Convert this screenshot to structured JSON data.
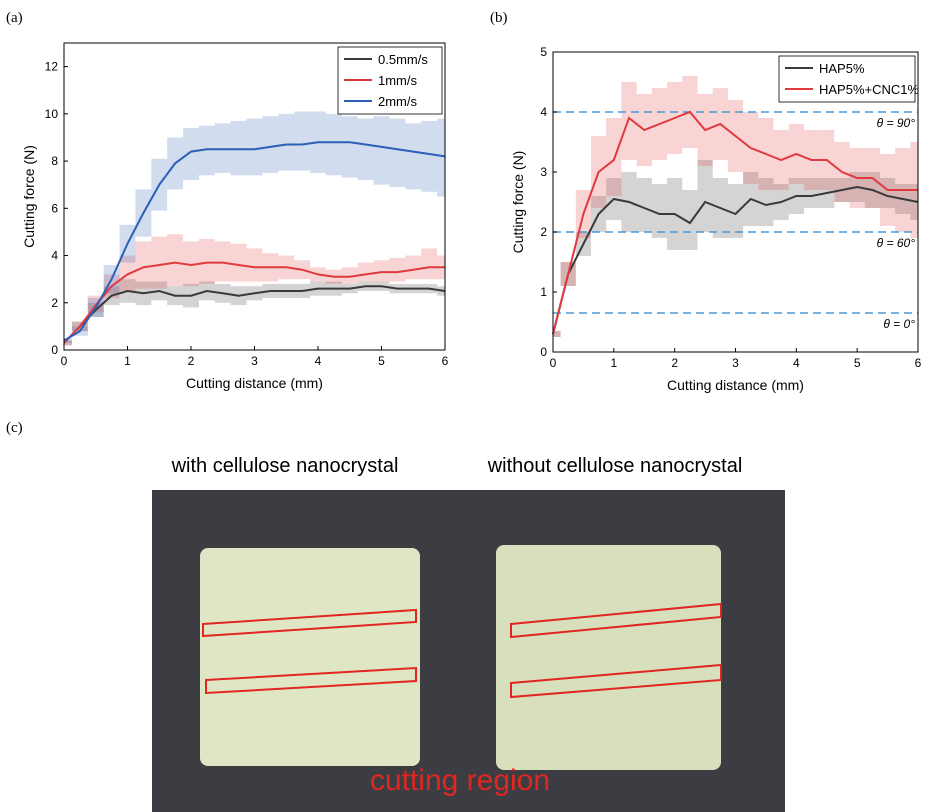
{
  "chart_data": [
    {
      "type": "line",
      "panel_label": "(a)",
      "xlabel": "Cutting distance (mm)",
      "ylabel": "Cutting force (N)",
      "xlim": [
        0,
        6
      ],
      "ylim": [
        0,
        13
      ],
      "xticks": [
        0,
        1,
        2,
        3,
        4,
        5,
        6
      ],
      "yticks": [
        0,
        2,
        4,
        6,
        8,
        10,
        12
      ],
      "legend": "upper right",
      "x": [
        0,
        0.25,
        0.5,
        0.75,
        1,
        1.25,
        1.5,
        1.75,
        2,
        2.25,
        2.5,
        2.75,
        3,
        3.25,
        3.5,
        3.75,
        4,
        4.25,
        4.5,
        4.75,
        5,
        5.25,
        5.5,
        5.75,
        6
      ],
      "series": [
        {
          "name": "0.5mm/s",
          "color": "#3a3a3a",
          "values": [
            0.3,
            1.0,
            1.7,
            2.3,
            2.5,
            2.4,
            2.5,
            2.3,
            2.3,
            2.5,
            2.4,
            2.3,
            2.4,
            2.5,
            2.5,
            2.5,
            2.6,
            2.6,
            2.6,
            2.7,
            2.7,
            2.6,
            2.6,
            2.6,
            2.5
          ],
          "lower": [
            0.2,
            0.8,
            1.4,
            1.9,
            2.0,
            1.9,
            2.1,
            1.9,
            1.8,
            2.1,
            2.0,
            1.9,
            2.1,
            2.2,
            2.2,
            2.2,
            2.3,
            2.3,
            2.4,
            2.5,
            2.5,
            2.4,
            2.4,
            2.4,
            2.3
          ],
          "upper": [
            0.4,
            1.2,
            2.0,
            2.7,
            3.0,
            2.9,
            2.9,
            2.7,
            2.8,
            2.9,
            2.8,
            2.7,
            2.7,
            2.8,
            2.8,
            2.8,
            2.9,
            2.9,
            2.8,
            2.9,
            2.9,
            2.8,
            2.8,
            2.8,
            2.7
          ]
        },
        {
          "name": "1mm/s",
          "color": "#e0393e",
          "values": [
            0.3,
            1.0,
            1.9,
            2.7,
            3.2,
            3.5,
            3.6,
            3.7,
            3.6,
            3.7,
            3.7,
            3.6,
            3.5,
            3.5,
            3.5,
            3.4,
            3.2,
            3.1,
            3.1,
            3.2,
            3.3,
            3.3,
            3.4,
            3.5,
            3.5
          ],
          "lower": [
            0.2,
            0.8,
            1.6,
            2.2,
            2.5,
            2.6,
            2.6,
            2.7,
            2.7,
            2.8,
            2.9,
            2.9,
            2.9,
            2.9,
            3.0,
            3.0,
            2.9,
            2.8,
            2.8,
            2.9,
            2.9,
            2.9,
            3.0,
            3.0,
            3.0
          ],
          "upper": [
            0.4,
            1.2,
            2.3,
            3.2,
            4.0,
            4.6,
            4.8,
            4.9,
            4.6,
            4.7,
            4.6,
            4.5,
            4.3,
            4.1,
            4.0,
            3.8,
            3.5,
            3.4,
            3.5,
            3.7,
            3.8,
            3.9,
            4.0,
            4.3,
            4.0
          ]
        },
        {
          "name": "2mm/s",
          "color": "#2c5fb5",
          "values": [
            0.4,
            0.8,
            1.8,
            3.0,
            4.5,
            5.8,
            7.0,
            7.9,
            8.4,
            8.5,
            8.5,
            8.5,
            8.5,
            8.6,
            8.7,
            8.7,
            8.8,
            8.8,
            8.8,
            8.7,
            8.6,
            8.5,
            8.4,
            8.3,
            8.2
          ],
          "lower": [
            0.3,
            0.6,
            1.4,
            2.4,
            3.7,
            4.8,
            5.9,
            6.8,
            7.2,
            7.4,
            7.5,
            7.4,
            7.4,
            7.5,
            7.6,
            7.6,
            7.5,
            7.4,
            7.3,
            7.2,
            7.0,
            6.9,
            6.8,
            6.7,
            6.5
          ],
          "upper": [
            0.5,
            1.0,
            2.2,
            3.6,
            5.3,
            6.8,
            8.1,
            9.0,
            9.4,
            9.5,
            9.6,
            9.7,
            9.8,
            9.9,
            10.0,
            10.1,
            10.1,
            10.0,
            9.9,
            9.8,
            9.9,
            9.8,
            9.6,
            9.7,
            9.8
          ]
        }
      ]
    },
    {
      "type": "line",
      "panel_label": "(b)",
      "xlabel": "Cutting distance (mm)",
      "ylabel": "Cutting force (N)",
      "xlim": [
        0,
        6
      ],
      "ylim": [
        0,
        5
      ],
      "xticks": [
        0,
        1,
        2,
        3,
        4,
        5,
        6
      ],
      "yticks": [
        0,
        1,
        2,
        3,
        4,
        5
      ],
      "legend": "upper right",
      "reference_lines": [
        {
          "value": 4,
          "label": "θ = 90°"
        },
        {
          "value": 2,
          "label": "θ = 60°"
        },
        {
          "value": 0.65,
          "label": "θ = 0°"
        }
      ],
      "x": [
        0,
        0.25,
        0.5,
        0.75,
        1,
        1.25,
        1.5,
        1.75,
        2,
        2.25,
        2.5,
        2.75,
        3,
        3.25,
        3.5,
        3.75,
        4,
        4.25,
        4.5,
        4.75,
        5,
        5.25,
        5.5,
        5.75,
        6
      ],
      "series": [
        {
          "name": "HAP5%",
          "color": "#3a3a3a",
          "values": [
            0.3,
            1.3,
            1.8,
            2.3,
            2.55,
            2.5,
            2.4,
            2.3,
            2.3,
            2.15,
            2.5,
            2.4,
            2.3,
            2.55,
            2.45,
            2.5,
            2.6,
            2.6,
            2.65,
            2.7,
            2.75,
            2.7,
            2.6,
            2.55,
            2.5
          ],
          "lower": [
            0.25,
            1.1,
            1.6,
            2.0,
            2.2,
            2.0,
            2.0,
            1.9,
            1.7,
            1.7,
            2.0,
            1.9,
            1.9,
            2.1,
            2.1,
            2.2,
            2.3,
            2.4,
            2.4,
            2.5,
            2.5,
            2.4,
            2.4,
            2.3,
            2.2
          ],
          "upper": [
            0.35,
            1.5,
            2.0,
            2.6,
            2.9,
            3.0,
            2.9,
            2.8,
            2.9,
            2.7,
            3.2,
            2.9,
            2.8,
            3.0,
            2.9,
            2.8,
            2.9,
            2.9,
            2.9,
            2.9,
            3.0,
            3.0,
            2.9,
            2.8,
            2.8
          ]
        },
        {
          "name": "HAP5%+CNC1%",
          "color": "#e0393e",
          "values": [
            0.3,
            1.3,
            2.3,
            3.0,
            3.2,
            3.9,
            3.7,
            3.8,
            3.9,
            4.0,
            3.7,
            3.8,
            3.6,
            3.4,
            3.3,
            3.2,
            3.3,
            3.2,
            3.2,
            3.0,
            2.9,
            2.9,
            2.7,
            2.7,
            2.7
          ],
          "lower": [
            0.25,
            1.1,
            1.9,
            2.4,
            2.6,
            3.2,
            3.1,
            3.2,
            3.3,
            3.4,
            3.1,
            3.2,
            3.0,
            2.8,
            2.7,
            2.7,
            2.8,
            2.7,
            2.7,
            2.5,
            2.4,
            2.4,
            2.1,
            2.0,
            1.9
          ],
          "upper": [
            0.35,
            1.5,
            2.7,
            3.6,
            3.9,
            4.5,
            4.3,
            4.4,
            4.5,
            4.6,
            4.3,
            4.4,
            4.2,
            4.0,
            3.9,
            3.7,
            3.8,
            3.7,
            3.7,
            3.5,
            3.4,
            3.4,
            3.3,
            3.4,
            3.5
          ]
        }
      ]
    }
  ],
  "panel_c": {
    "label": "(c)",
    "captions": [
      "with cellulose nanocrystal",
      "without cellulose nanocrystal"
    ],
    "annotation": "cutting region"
  }
}
